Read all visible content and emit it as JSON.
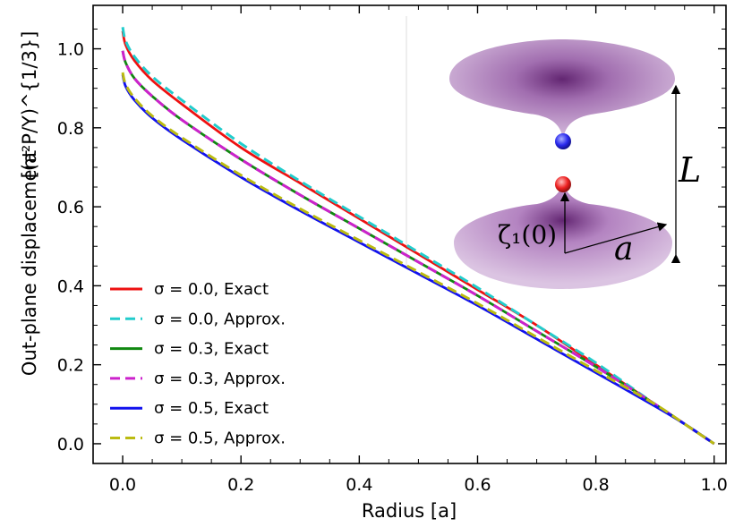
{
  "chart_data": {
    "type": "line",
    "xlabel": "Radius [a]",
    "ylabel_main": "Out-plane displacement",
    "ylabel_unit": "[(a²P/Y)^{1/3}]",
    "xlim": [
      -0.05,
      1.02
    ],
    "ylim": [
      -0.05,
      1.11
    ],
    "xticks": [
      "0.0",
      "0.2",
      "0.4",
      "0.6",
      "0.8",
      "1.0"
    ],
    "yticks": [
      "0.0",
      "0.2",
      "0.4",
      "0.6",
      "0.8",
      "1.0"
    ],
    "grid": false,
    "legend_position": "lower-left",
    "series": [
      {
        "name": "σ = 0.0, Exact",
        "color": "#ee1111",
        "style": "solid",
        "x": [
          0,
          0.005,
          0.02,
          0.05,
          0.1,
          0.2,
          0.3,
          0.4,
          0.5,
          0.6,
          0.7,
          0.8,
          0.9,
          0.95,
          1.0
        ],
        "y": [
          1.045,
          1.01,
          0.97,
          0.92,
          0.86,
          0.75,
          0.66,
          0.57,
          0.48,
          0.39,
          0.3,
          0.2,
          0.1,
          0.05,
          0.0
        ]
      },
      {
        "name": "σ = 0.0, Approx.",
        "color": "#22cccc",
        "style": "dashed",
        "x": [
          0,
          0.005,
          0.02,
          0.05,
          0.1,
          0.2,
          0.3,
          0.4,
          0.5,
          0.6,
          0.7,
          0.8,
          0.9,
          0.95,
          1.0
        ],
        "y": [
          1.055,
          1.02,
          0.98,
          0.93,
          0.87,
          0.76,
          0.665,
          0.575,
          0.485,
          0.395,
          0.3,
          0.205,
          0.1,
          0.05,
          0.0
        ]
      },
      {
        "name": "σ = 0.3, Exact",
        "color": "#118811",
        "style": "solid",
        "x": [
          0,
          0.005,
          0.02,
          0.05,
          0.1,
          0.2,
          0.3,
          0.4,
          0.5,
          0.6,
          0.7,
          0.8,
          0.9,
          0.95,
          1.0
        ],
        "y": [
          0.995,
          0.965,
          0.925,
          0.88,
          0.82,
          0.72,
          0.63,
          0.545,
          0.46,
          0.375,
          0.285,
          0.195,
          0.1,
          0.05,
          0.0
        ]
      },
      {
        "name": "σ = 0.3, Approx.",
        "color": "#cc22cc",
        "style": "dashed",
        "x": [
          0,
          0.005,
          0.02,
          0.05,
          0.1,
          0.2,
          0.3,
          0.4,
          0.5,
          0.6,
          0.7,
          0.8,
          0.9,
          0.95,
          1.0
        ],
        "y": [
          0.995,
          0.965,
          0.925,
          0.88,
          0.82,
          0.72,
          0.63,
          0.545,
          0.46,
          0.375,
          0.285,
          0.195,
          0.1,
          0.05,
          0.0
        ]
      },
      {
        "name": "σ = 0.5, Exact",
        "color": "#1111ee",
        "style": "solid",
        "x": [
          0,
          0.005,
          0.02,
          0.05,
          0.1,
          0.2,
          0.3,
          0.4,
          0.5,
          0.6,
          0.7,
          0.8,
          0.9,
          0.95,
          1.0
        ],
        "y": [
          0.935,
          0.905,
          0.87,
          0.825,
          0.77,
          0.675,
          0.59,
          0.51,
          0.43,
          0.35,
          0.265,
          0.18,
          0.095,
          0.05,
          0.0
        ]
      },
      {
        "name": "σ = 0.5, Approx.",
        "color": "#bbbb11",
        "style": "dashed",
        "x": [
          0,
          0.005,
          0.02,
          0.05,
          0.1,
          0.2,
          0.3,
          0.4,
          0.5,
          0.6,
          0.7,
          0.8,
          0.9,
          0.95,
          1.0
        ],
        "y": [
          0.94,
          0.91,
          0.875,
          0.83,
          0.775,
          0.68,
          0.595,
          0.515,
          0.435,
          0.355,
          0.27,
          0.185,
          0.1,
          0.05,
          0.0
        ]
      }
    ],
    "inset": {
      "labels": {
        "distance": "L",
        "radius": "a",
        "center_height": "ζ₁(0)"
      },
      "surface_color": "#8a3c99",
      "top_tip_color": "#2a2aee",
      "bottom_tip_color": "#ee2222"
    }
  }
}
